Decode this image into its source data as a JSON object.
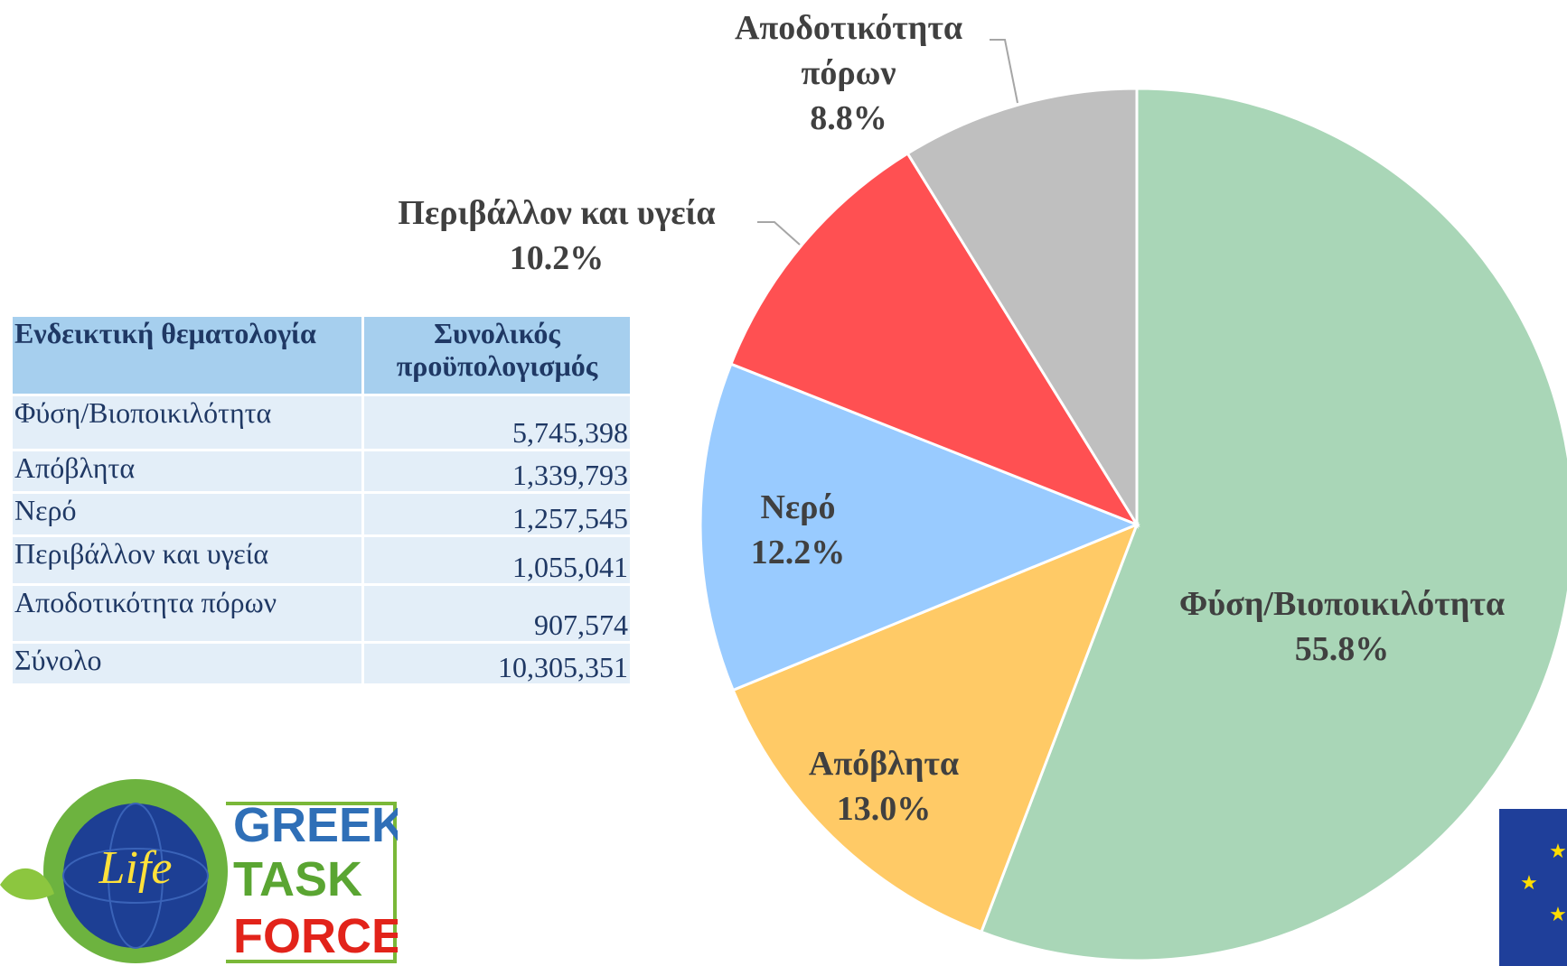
{
  "chart_data": {
    "type": "pie",
    "categories": [
      "Φύση/Βιοποικιλότητα",
      "Απόβλητα",
      "Νερό",
      "Περιβάλλον και υγεία",
      "Αποδοτικότητα πόρων"
    ],
    "values": [
      55.8,
      13.0,
      12.2,
      10.2,
      8.8
    ],
    "value_labels": [
      "55.8%",
      "13.0%",
      "12.2%",
      "10.2%",
      "8.8%"
    ],
    "colors": [
      "#a9d6b7",
      "#ffca66",
      "#99cbff",
      "#ff5052",
      "#bfbfbf"
    ]
  },
  "table": {
    "header": [
      "Ενδεικτική θεματολογία",
      "Συνολικός προϋπολογισμός"
    ],
    "rows": [
      [
        "Φύση/Βιοποικιλότητα",
        "5,745,398"
      ],
      [
        "Απόβλητα",
        "1,339,793"
      ],
      [
        "Νερό",
        "1,257,545"
      ],
      [
        "Περιβάλλον και υγεία",
        "1,055,041"
      ],
      [
        "Αποδοτικότητα πόρων",
        "907,574"
      ],
      [
        "Σύνολο",
        "10,305,351"
      ]
    ]
  },
  "logo": {
    "script": "Life",
    "lines": [
      "GREEK",
      "TASK",
      "FORCE"
    ]
  }
}
